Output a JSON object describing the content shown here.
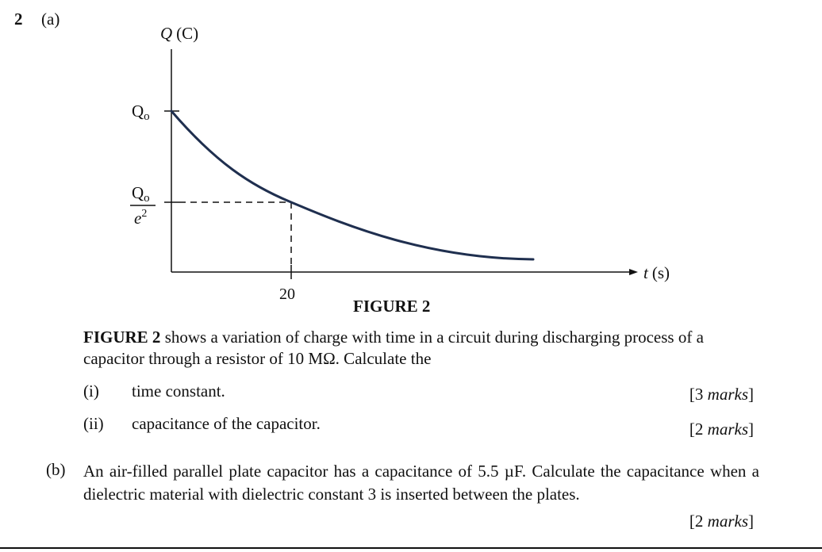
{
  "question": {
    "number": "2",
    "part_a_label": "(a)",
    "figure": {
      "y_axis_label_symbol": "Q",
      "y_axis_label_unit": "(C)",
      "x_axis_label_symbol": "t",
      "x_axis_label_unit": "(s)",
      "y_tick_q0_base": "Q",
      "y_tick_q0_sub": "o",
      "y_tick_frac_num_base": "Q",
      "y_tick_frac_num_sub": "o",
      "y_tick_frac_den_base": "e",
      "y_tick_frac_den_exp": "2",
      "x_tick": "20",
      "caption": "FIGURE 2",
      "curve_color": "#1f2f4f"
    },
    "description_bold": "FIGURE 2",
    "description_rest": " shows a variation of charge with time in a circuit during discharging process of a capacitor through a resistor of 10 MΩ. Calculate the",
    "sub_items": [
      {
        "label": "(i)",
        "text": "time constant.",
        "marks": "[3 marks]"
      },
      {
        "label": "(ii)",
        "text": "capacitance of the capacitor.",
        "marks": "[2 marks]"
      }
    ],
    "part_b_label": "(b)",
    "part_b_text": "An air-filled parallel plate capacitor has a capacitance of 5.5 µF. Calculate the capacitance when a dielectric material with dielectric constant 3 is inserted between the plates.",
    "part_b_marks": "[2 marks]"
  }
}
